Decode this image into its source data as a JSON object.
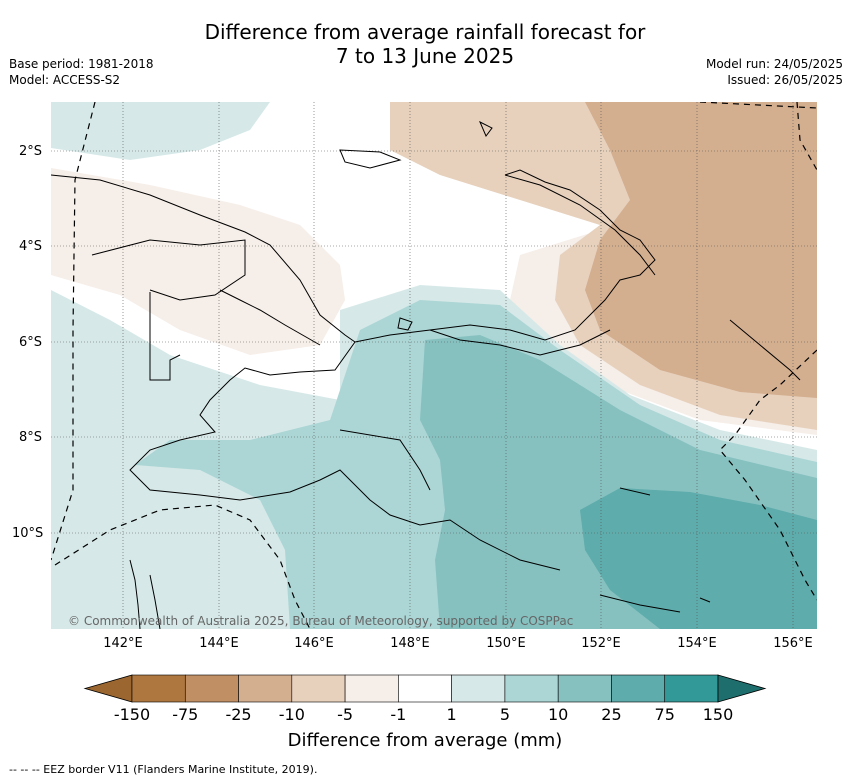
{
  "title_line1": "Difference from average rainfall forecast for",
  "title_line2": "7 to 13 June 2025",
  "base_period": "Base period: 1981-2018",
  "model": "Model: ACCESS-S2",
  "model_run": "Model run: 24/05/2025",
  "issued": "Issued: 26/05/2025",
  "lat_labels": [
    "2°S",
    "4°S",
    "6°S",
    "8°S",
    "10°S"
  ],
  "lon_labels": [
    "142°E",
    "144°E",
    "146°E",
    "148°E",
    "150°E",
    "152°E",
    "154°E",
    "156°E"
  ],
  "copyright": "© Commonwealth of Australia 2025, Bureau of Meteorology, supported by COSPPac",
  "colorbar": {
    "ticks": [
      "-150",
      "-75",
      "-25",
      "-10",
      "-5",
      "-1",
      "1",
      "5",
      "10",
      "25",
      "75",
      "150"
    ],
    "colors": [
      "#9c6630",
      "#ad773f",
      "#c08f63",
      "#d3ae8f",
      "#e7d1bd",
      "#f6eee8",
      "#ffffff",
      "#d6e9e8",
      "#acd6d5",
      "#86c1c0",
      "#5eacab",
      "#339998",
      "#1e6e6d"
    ],
    "label": "Difference from average (mm)"
  },
  "footnote": "--  --  -- EEZ border V11 (Flanders Marine Institute, 2019)."
}
